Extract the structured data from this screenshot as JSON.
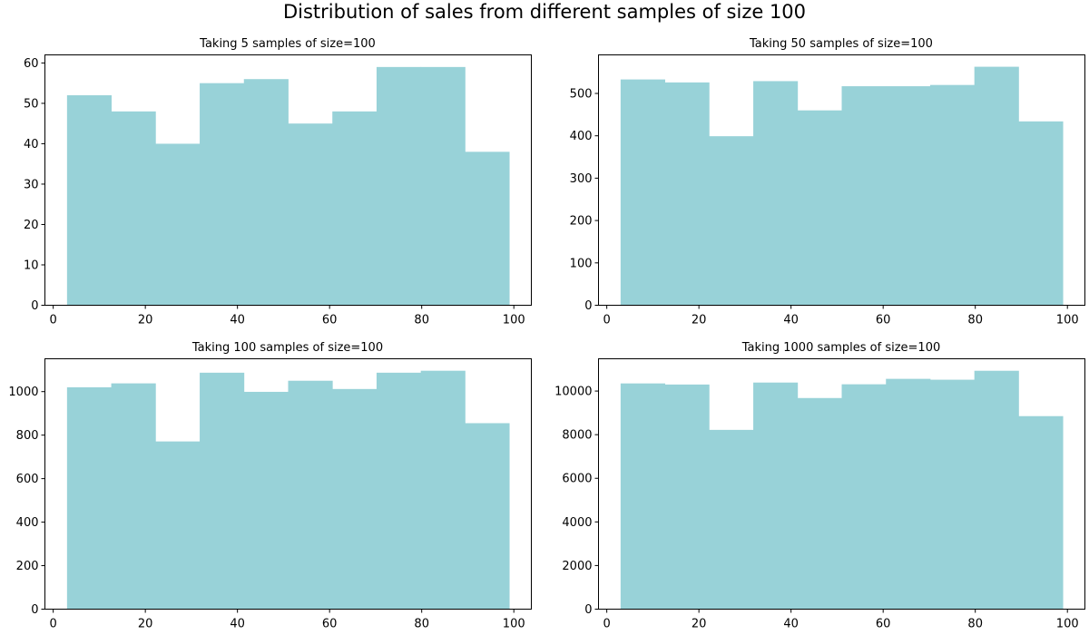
{
  "figure": {
    "title": "Distribution of sales from different samples of size 100",
    "bar_color": "#98d2d8"
  },
  "chart_data": [
    {
      "type": "bar",
      "title": "Taking 5 samples of size=100",
      "xlabel": "",
      "ylabel": "",
      "bin_edges": [
        3,
        12.6,
        22.2,
        31.8,
        41.4,
        51,
        60.6,
        70.2,
        79.8,
        89.4,
        99
      ],
      "values": [
        52,
        48,
        40,
        55,
        56,
        45,
        48,
        59,
        59,
        38
      ],
      "xlim": [
        -1.8,
        103.8
      ],
      "ylim": [
        0,
        62
      ],
      "xticks": [
        0,
        20,
        40,
        60,
        80,
        100
      ],
      "yticks": [
        0,
        10,
        20,
        30,
        40,
        50,
        60
      ],
      "grid": false
    },
    {
      "type": "bar",
      "title": "Taking 50 samples of size=100",
      "xlabel": "",
      "ylabel": "",
      "bin_edges": [
        3,
        12.6,
        22.2,
        31.8,
        41.4,
        51,
        60.6,
        70.2,
        79.8,
        89.4,
        99
      ],
      "values": [
        533,
        526,
        399,
        529,
        460,
        517,
        517,
        520,
        563,
        434
      ],
      "xlim": [
        -1.8,
        103.8
      ],
      "ylim": [
        0,
        591
      ],
      "xticks": [
        0,
        20,
        40,
        60,
        80,
        100
      ],
      "yticks": [
        0,
        100,
        200,
        300,
        400,
        500
      ],
      "grid": false
    },
    {
      "type": "bar",
      "title": "Taking 100 samples of size=100",
      "xlabel": "",
      "ylabel": "",
      "bin_edges": [
        3,
        12.6,
        22.2,
        31.8,
        41.4,
        51,
        60.6,
        70.2,
        79.8,
        89.4,
        99
      ],
      "values": [
        1020,
        1038,
        771,
        1087,
        999,
        1050,
        1012,
        1087,
        1096,
        855
      ],
      "xlim": [
        -1.8,
        103.8
      ],
      "ylim": [
        0,
        1151
      ],
      "xticks": [
        0,
        20,
        40,
        60,
        80,
        100
      ],
      "yticks": [
        0,
        200,
        400,
        600,
        800,
        1000
      ],
      "grid": false
    },
    {
      "type": "bar",
      "title": "Taking 1000 samples of size=100",
      "xlabel": "",
      "ylabel": "",
      "bin_edges": [
        3,
        12.6,
        22.2,
        31.8,
        41.4,
        51,
        60.6,
        70.2,
        79.8,
        89.4,
        99
      ],
      "values": [
        10350,
        10300,
        8220,
        10390,
        9680,
        10310,
        10560,
        10520,
        10930,
        8850
      ],
      "xlim": [
        -1.8,
        103.8
      ],
      "ylim": [
        0,
        11480
      ],
      "xticks": [
        0,
        20,
        40,
        60,
        80,
        100
      ],
      "yticks": [
        0,
        2000,
        4000,
        6000,
        8000,
        10000
      ],
      "grid": false
    }
  ]
}
